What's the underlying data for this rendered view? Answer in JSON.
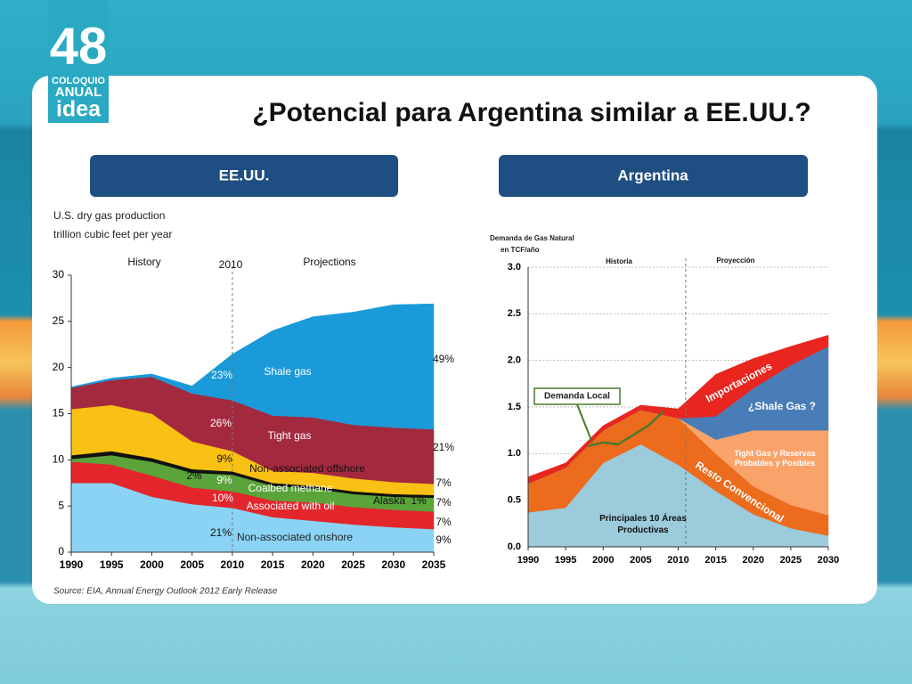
{
  "slide": {
    "logo": [
      "48",
      "COLOQUIO",
      "ANUAL",
      "idea"
    ],
    "title": "¿Potencial para Argentina similar a EE.UU.?",
    "panels": [
      "EE.UU.",
      "Argentina"
    ]
  },
  "chart_data": [
    {
      "type": "stacked_area",
      "title": "U.S. dry gas production",
      "subtitle": "trillion cubic feet per year",
      "source": "Source: EIA, Annual Energy Outlook 2012 Early Release",
      "annotations": [
        "History",
        "2010",
        "Projections",
        "23%",
        "26%",
        "9%",
        "2%",
        "9%",
        "10%",
        "21%",
        "1%",
        "49%",
        "21%",
        "7%",
        "7%",
        "7%",
        "9%"
      ],
      "divider": 2010,
      "x": [
        1990,
        1995,
        2000,
        2005,
        2010,
        2015,
        2020,
        2025,
        2030,
        2035
      ],
      "series": [
        {
          "name": "Non-associated onshore",
          "color": "#8bd3f5",
          "values": [
            7.5,
            7.5,
            6.0,
            5.2,
            4.8,
            3.8,
            3.4,
            3.0,
            2.7,
            2.5
          ]
        },
        {
          "name": "Associated with oil",
          "color": "#e3262c",
          "values": [
            2.3,
            2.0,
            2.3,
            1.8,
            1.8,
            1.8,
            2.0,
            1.9,
            1.9,
            1.9
          ]
        },
        {
          "name": "Coalbed methane",
          "color": "#5aa43a",
          "values": [
            0.3,
            1.0,
            1.5,
            1.6,
            1.8,
            1.6,
            1.5,
            1.4,
            1.4,
            1.5
          ]
        },
        {
          "name": "Alaska",
          "color": "#111111",
          "values": [
            0.4,
            0.45,
            0.4,
            0.4,
            0.35,
            0.3,
            0.3,
            0.3,
            0.3,
            0.3
          ]
        },
        {
          "name": "Non-associated offshore",
          "color": "#f9c113",
          "values": [
            5.0,
            5.0,
            4.8,
            3.0,
            2.2,
            1.3,
            1.4,
            1.4,
            1.3,
            1.2
          ]
        },
        {
          "name": "Tight gas",
          "color": "#a3293f",
          "values": [
            2.3,
            2.7,
            4.0,
            5.2,
            5.5,
            6.0,
            6.0,
            5.8,
            5.9,
            5.9
          ]
        },
        {
          "name": "Shale gas",
          "color": "#1a9ad9",
          "values": [
            0.1,
            0.2,
            0.3,
            0.8,
            5.0,
            9.2,
            10.9,
            12.2,
            13.3,
            13.6
          ]
        }
      ],
      "xlim": [
        1990,
        2035
      ],
      "xticks": [
        1990,
        1995,
        2000,
        2005,
        2010,
        2015,
        2020,
        2025,
        2030,
        2035
      ],
      "ylim": [
        0,
        30
      ],
      "yticks": [
        0,
        5,
        10,
        15,
        20,
        25,
        30
      ]
    },
    {
      "type": "stacked_area",
      "title": "Demanda de Gas Natural",
      "subtitle": "en TCF/año",
      "annotations": [
        "Historia",
        "Proyección"
      ],
      "divider": 2011,
      "x": [
        1990,
        1995,
        2000,
        2005,
        2010,
        2015,
        2020,
        2025,
        2030
      ],
      "series": [
        {
          "name": "Principales 10 Áreas Productivas",
          "color": "#9ccbdc",
          "values": [
            0.37,
            0.42,
            0.9,
            1.1,
            0.88,
            0.6,
            0.35,
            0.2,
            0.12
          ]
        },
        {
          "name": "Resto Convencional",
          "color": "#ec6b1c",
          "values": [
            0.31,
            0.43,
            0.35,
            0.37,
            0.5,
            0.4,
            0.3,
            0.25,
            0.22
          ]
        },
        {
          "name": "Tight Gas y Reservas Probables y Posibles",
          "color": "#f9a36b",
          "values": [
            0,
            0,
            0,
            0,
            0,
            0.15,
            0.6,
            0.8,
            0.91
          ]
        },
        {
          "name": "¿Shale Gas ?",
          "color": "#4a7db8",
          "values": [
            0,
            0,
            0,
            0,
            0,
            0.25,
            0.45,
            0.7,
            0.9
          ]
        },
        {
          "name": "Importaciones",
          "color": "#e8251e",
          "values": [
            0.07,
            0.05,
            0.05,
            0.05,
            0.1,
            0.45,
            0.32,
            0.2,
            0.12
          ]
        }
      ],
      "line": {
        "name": "Demanda Local",
        "color": "#4a7a2c",
        "x": [
          1998,
          2000,
          2002,
          2004,
          2006,
          2008
        ],
        "values": [
          1.08,
          1.12,
          1.1,
          1.2,
          1.3,
          1.45
        ]
      },
      "xlim": [
        1990,
        2030
      ],
      "xticks": [
        1990,
        1995,
        2000,
        2005,
        2010,
        2015,
        2020,
        2025,
        2030
      ],
      "ylim": [
        0,
        3
      ],
      "yticks": [
        {
          "value": 0,
          "label": "0.0"
        },
        0.5,
        {
          "value": 1,
          "label": "1.0"
        },
        1.5,
        {
          "value": 2,
          "label": "2.0"
        },
        2.5,
        {
          "value": 3,
          "label": "3.0"
        }
      ]
    }
  ]
}
